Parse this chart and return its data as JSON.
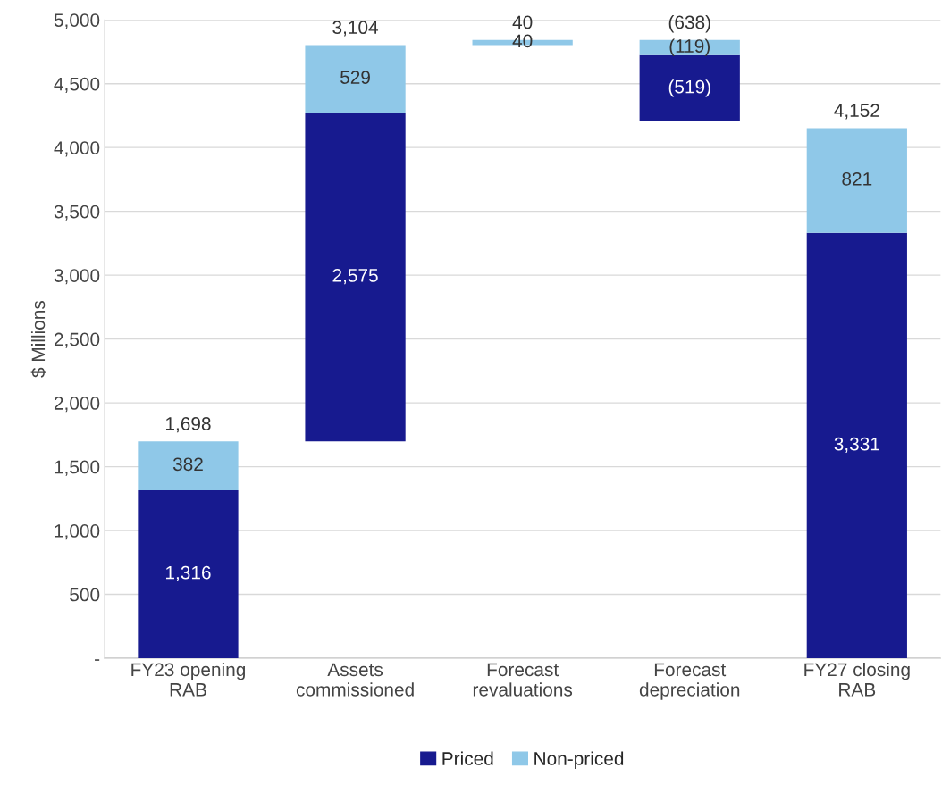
{
  "chart_data": {
    "type": "bar",
    "ylabel": "$ Millions",
    "categories": [
      "FY23 opening\nRAB",
      "Assets\ncommissioned",
      "Forecast\nrevaluations",
      "Forecast\ndepreciation",
      "FY27 closing\nRAB"
    ],
    "series": [
      {
        "name": "Priced",
        "color": "#171a8f",
        "values": [
          1316,
          2575,
          null,
          -519,
          3331
        ],
        "base": [
          0,
          1698,
          null,
          4723,
          0
        ],
        "value_labels": [
          "1,316",
          "2,575",
          null,
          "(519)",
          "3,331"
        ]
      },
      {
        "name": "Non-priced",
        "color": "#8fc8e8",
        "values": [
          382,
          529,
          40,
          -119,
          821
        ],
        "base": [
          1316,
          4273,
          4802,
          4842,
          3331
        ],
        "value_labels": [
          "382",
          "529",
          "40",
          "(119)",
          "821"
        ]
      }
    ],
    "totals": [
      "1,698",
      "3,104",
      "40",
      "(638)",
      "4,152"
    ],
    "ylim": [
      0,
      5000
    ],
    "yticks": [
      {
        "value": 0,
        "label": "-"
      },
      500,
      {
        "value": 1000,
        "label": "1,000"
      },
      {
        "value": 1500,
        "label": "1,500"
      },
      {
        "value": 2000,
        "label": "2,000"
      },
      {
        "value": 2500,
        "label": "2,500"
      },
      {
        "value": 3000,
        "label": "3,000"
      },
      {
        "value": 3500,
        "label": "3,500"
      },
      {
        "value": 4000,
        "label": "4,000"
      },
      {
        "value": 4500,
        "label": "4,500"
      },
      {
        "value": 5000,
        "label": "5,000"
      }
    ],
    "grid": "y",
    "legend": "bottom"
  }
}
